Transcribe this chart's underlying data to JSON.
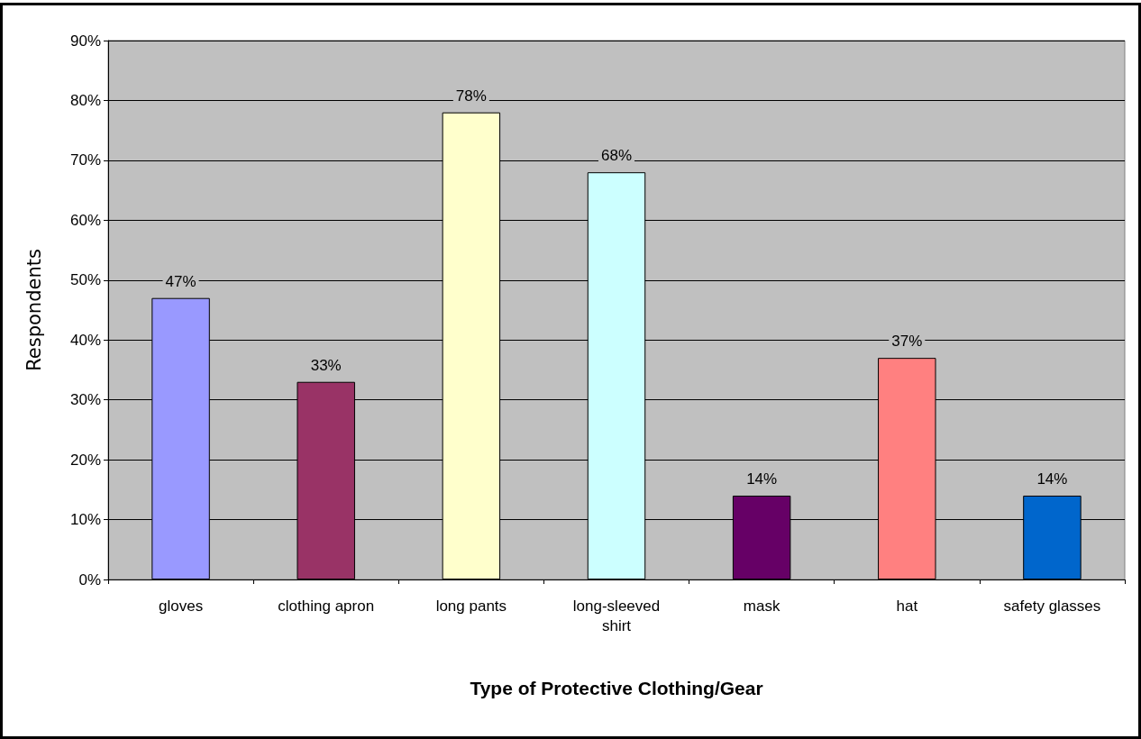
{
  "chart_data": {
    "type": "bar",
    "xlabel": "Type of Protective Clothing/Gear",
    "ylabel": "Respondents",
    "categories": [
      "gloves",
      "clothing apron",
      "long pants",
      "long-sleeved\nshirt",
      "mask",
      "hat",
      "safety glasses"
    ],
    "values": [
      47,
      33,
      78,
      68,
      14,
      37,
      14
    ],
    "colors": [
      "#9999ff",
      "#993366",
      "#ffffcc",
      "#ccffff",
      "#660066",
      "#ff8080",
      "#0066cc"
    ],
    "value_labels": [
      "47%",
      "33%",
      "78%",
      "68%",
      "14%",
      "37%",
      "14%"
    ],
    "ylim": [
      0,
      90
    ],
    "yticks": [
      {
        "value": 0,
        "label": "0%"
      },
      {
        "value": 10,
        "label": "10%"
      },
      {
        "value": 20,
        "label": "20%"
      },
      {
        "value": 30,
        "label": "30%"
      },
      {
        "value": 40,
        "label": "40%"
      },
      {
        "value": 50,
        "label": "50%"
      },
      {
        "value": 60,
        "label": "60%"
      },
      {
        "value": 70,
        "label": "70%"
      },
      {
        "value": 80,
        "label": "80%"
      },
      {
        "value": 90,
        "label": "90%"
      }
    ],
    "grid": "y"
  }
}
